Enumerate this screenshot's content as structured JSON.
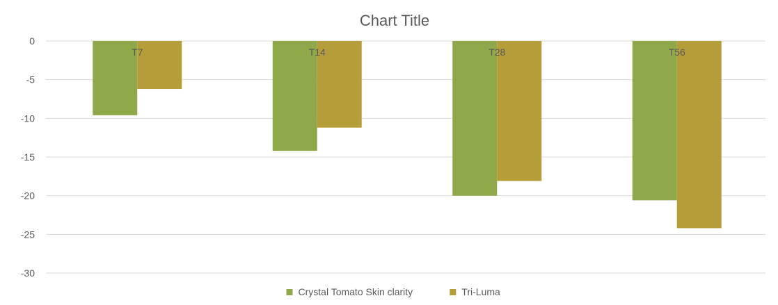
{
  "chart_data": {
    "type": "bar",
    "title": "Chart Title",
    "categories": [
      "T7",
      "T14",
      "T28",
      "T56"
    ],
    "series": [
      {
        "name": "Crystal Tomato Skin clarity",
        "color": "#8fa84a",
        "values": [
          -9.6,
          -14.2,
          -20.0,
          -20.6
        ]
      },
      {
        "name": "Tri-Luma",
        "color": "#b59e3a",
        "values": [
          -6.2,
          -11.2,
          -18.1,
          -24.2
        ]
      }
    ],
    "ylim": [
      -30,
      0
    ],
    "yticks": [
      0,
      -5,
      -10,
      -15,
      -20,
      -25,
      -30
    ],
    "grid": true,
    "legend": "bottom",
    "colors": {
      "grid": "#d9d9d9",
      "text": "#595959"
    }
  }
}
